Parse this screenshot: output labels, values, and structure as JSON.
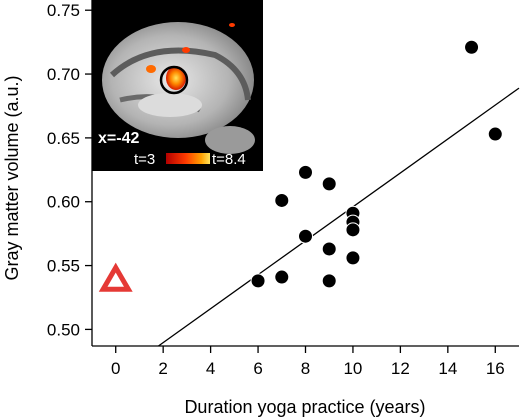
{
  "chart_data": {
    "type": "scatter",
    "xlabel": "Duration yoga practice (years)",
    "ylabel": "Gray matter volume (a.u.)",
    "xlim": [
      -1,
      17
    ],
    "ylim": [
      0.487,
      0.758
    ],
    "x_ticks": [
      0,
      2,
      4,
      6,
      8,
      10,
      12,
      14,
      16
    ],
    "y_ticks": [
      0.5,
      0.55,
      0.6,
      0.65,
      0.7,
      0.75
    ],
    "x_tick_labels": [
      "0",
      "2",
      "4",
      "6",
      "8",
      "10",
      "12",
      "14",
      "16"
    ],
    "y_tick_labels": [
      "0.50",
      "0.55",
      "0.60",
      "0.65",
      "0.70",
      "0.75"
    ],
    "points": [
      {
        "x": 6,
        "y": 0.538
      },
      {
        "x": 7,
        "y": 0.601
      },
      {
        "x": 7,
        "y": 0.541
      },
      {
        "x": 8,
        "y": 0.623
      },
      {
        "x": 8,
        "y": 0.573
      },
      {
        "x": 9,
        "y": 0.614
      },
      {
        "x": 9,
        "y": 0.563
      },
      {
        "x": 9,
        "y": 0.538
      },
      {
        "x": 10,
        "y": 0.591
      },
      {
        "x": 10,
        "y": 0.584
      },
      {
        "x": 10,
        "y": 0.578
      },
      {
        "x": 10,
        "y": 0.556
      },
      {
        "x": 15,
        "y": 0.721
      },
      {
        "x": 16,
        "y": 0.653
      }
    ],
    "control_marker": {
      "x": 0,
      "y": 0.539,
      "shape": "triangle",
      "color": "#e53935"
    },
    "fit_line": [
      {
        "x": 1.8,
        "y": 0.487
      },
      {
        "x": 17,
        "y": 0.689
      }
    ],
    "grid": false,
    "legend": "none",
    "point_color": "#000000",
    "line_color": "#000000"
  },
  "inset": {
    "slice_label": "x=-42",
    "tmin_label": "t=3",
    "tmax_label": "t=8.4"
  }
}
